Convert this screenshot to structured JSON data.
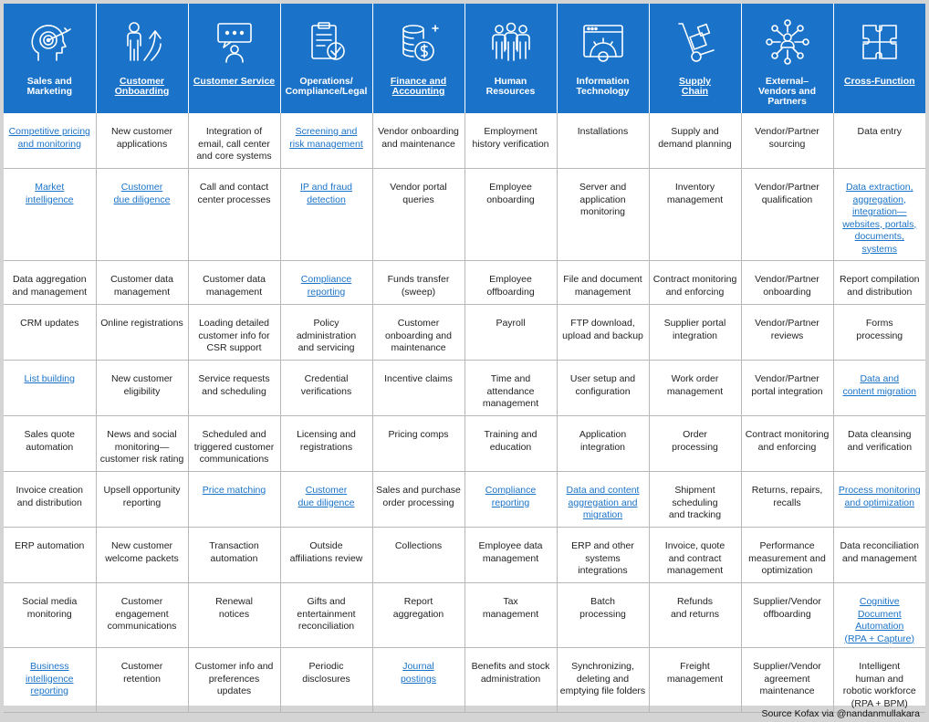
{
  "headers": [
    {
      "label": "Sales and\nMarketing",
      "link": false,
      "icon": "target-head-icon"
    },
    {
      "label": "Customer\nOnboarding",
      "link": true,
      "icon": "person-growth-icon"
    },
    {
      "label": "Customer Service",
      "link": true,
      "icon": "support-chat-icon"
    },
    {
      "label": "Operations/\nCompliance/Legal",
      "link": false,
      "icon": "compliance-clipboard-icon"
    },
    {
      "label": "Finance and\nAccounting",
      "link": true,
      "icon": "coins-dollar-icon"
    },
    {
      "label": "Human\nResources",
      "link": false,
      "icon": "people-group-icon"
    },
    {
      "label": "Information\nTechnology",
      "link": false,
      "icon": "browser-gear-icon"
    },
    {
      "label": "Supply\nChain",
      "link": true,
      "icon": "hand-truck-icon"
    },
    {
      "label": "External–\nVendors and\nPartners",
      "link": false,
      "icon": "network-people-icon"
    },
    {
      "label": "Cross-Function",
      "link": true,
      "icon": "puzzle-icon"
    }
  ],
  "rows": [
    [
      {
        "t": "Competitive pricing\nand monitoring",
        "l": true
      },
      {
        "t": "New customer\napplications",
        "l": false
      },
      {
        "t": "Integration of\nemail, call center\nand core systems",
        "l": false
      },
      {
        "t": "Screening and\nrisk management",
        "l": true
      },
      {
        "t": "Vendor onboarding\nand maintenance",
        "l": false
      },
      {
        "t": "Employment\nhistory verification",
        "l": false
      },
      {
        "t": "Installations",
        "l": false
      },
      {
        "t": "Supply and\ndemand planning",
        "l": false
      },
      {
        "t": "Vendor/Partner\nsourcing",
        "l": false
      },
      {
        "t": "Data entry",
        "l": false
      }
    ],
    [
      {
        "t": "Market\nintelligence",
        "l": true
      },
      {
        "t": "Customer\ndue diligence",
        "l": true
      },
      {
        "t": "Call and contact\ncenter processes",
        "l": false
      },
      {
        "t": "IP and fraud\ndetection",
        "l": true
      },
      {
        "t": "Vendor portal\nqueries",
        "l": false
      },
      {
        "t": "Employee\nonboarding",
        "l": false
      },
      {
        "t": "Server and\napplication\nmonitoring",
        "l": false
      },
      {
        "t": "Inventory\nmanagement",
        "l": false
      },
      {
        "t": "Vendor/Partner\nqualification",
        "l": false
      },
      {
        "t": "Data extraction,\naggregation,\nintegration—\nwebsites, portals,\ndocuments,\nsystems",
        "l": true
      }
    ],
    [
      {
        "t": "Data aggregation\nand management",
        "l": false
      },
      {
        "t": "Customer data\nmanagement",
        "l": false
      },
      {
        "t": "Customer data\nmanagement",
        "l": false
      },
      {
        "t": "Compliance\nreporting",
        "l": true
      },
      {
        "t": "Funds transfer\n(sweep)",
        "l": false
      },
      {
        "t": "Employee\noffboarding",
        "l": false
      },
      {
        "t": "File and document\nmanagement",
        "l": false
      },
      {
        "t": "Contract monitoring\nand enforcing",
        "l": false
      },
      {
        "t": "Vendor/Partner\nonboarding",
        "l": false
      },
      {
        "t": "Report compilation\nand distribution",
        "l": false
      }
    ],
    [
      {
        "t": "CRM updates",
        "l": false
      },
      {
        "t": "Online registrations",
        "l": false
      },
      {
        "t": "Loading detailed\ncustomer info for\nCSR support",
        "l": false
      },
      {
        "t": "Policy administration\nand servicing",
        "l": false
      },
      {
        "t": "Customer\nonboarding and\nmaintenance",
        "l": false
      },
      {
        "t": "Payroll",
        "l": false
      },
      {
        "t": "FTP download,\nupload and backup",
        "l": false
      },
      {
        "t": "Supplier portal\nintegration",
        "l": false
      },
      {
        "t": "Vendor/Partner\nreviews",
        "l": false
      },
      {
        "t": "Forms\nprocessing",
        "l": false
      }
    ],
    [
      {
        "t": "List building",
        "l": true
      },
      {
        "t": "New customer\neligibility",
        "l": false
      },
      {
        "t": "Service requests\nand scheduling",
        "l": false
      },
      {
        "t": "Credential\nverifications",
        "l": false
      },
      {
        "t": "Incentive claims",
        "l": false
      },
      {
        "t": "Time and\nattendance\nmanagement",
        "l": false
      },
      {
        "t": "User setup and\nconfiguration",
        "l": false
      },
      {
        "t": "Work order\nmanagement",
        "l": false
      },
      {
        "t": "Vendor/Partner\nportal integration",
        "l": false
      },
      {
        "t": "Data and\ncontent migration",
        "l": true
      }
    ],
    [
      {
        "t": "Sales quote\nautomation",
        "l": false
      },
      {
        "t": "News and social\nmonitoring—\ncustomer risk rating",
        "l": false
      },
      {
        "t": "Scheduled and\ntriggered customer\ncommunications",
        "l": false
      },
      {
        "t": "Licensing and\nregistrations",
        "l": false
      },
      {
        "t": "Pricing comps",
        "l": false
      },
      {
        "t": "Training and\neducation",
        "l": false
      },
      {
        "t": "Application\nintegration",
        "l": false
      },
      {
        "t": "Order\nprocessing",
        "l": false
      },
      {
        "t": "Contract monitoring\nand enforcing",
        "l": false
      },
      {
        "t": "Data cleansing\nand verification",
        "l": false
      }
    ],
    [
      {
        "t": "Invoice creation\nand distribution",
        "l": false
      },
      {
        "t": "Upsell opportunity\nreporting",
        "l": false
      },
      {
        "t": "Price matching",
        "l": true
      },
      {
        "t": "Customer\ndue diligence",
        "l": true
      },
      {
        "t": "Sales and purchase\norder processing",
        "l": false
      },
      {
        "t": "Compliance\nreporting",
        "l": true
      },
      {
        "t": "Data and content\naggregation and\nmigration",
        "l": true
      },
      {
        "t": "Shipment scheduling\nand tracking",
        "l": false
      },
      {
        "t": "Returns, repairs,\nrecalls",
        "l": false
      },
      {
        "t": "Process monitoring\nand optimization",
        "l": true
      }
    ],
    [
      {
        "t": "ERP automation",
        "l": false
      },
      {
        "t": "New customer\nwelcome packets",
        "l": false
      },
      {
        "t": "Transaction\nautomation",
        "l": false
      },
      {
        "t": "Outside\naffiliations review",
        "l": false
      },
      {
        "t": "Collections",
        "l": false
      },
      {
        "t": "Employee data\nmanagement",
        "l": false
      },
      {
        "t": "ERP and other\nsystems integrations",
        "l": false
      },
      {
        "t": "Invoice, quote\nand contract\nmanagement",
        "l": false
      },
      {
        "t": "Performance\nmeasurement and\noptimization",
        "l": false
      },
      {
        "t": "Data reconciliation\nand management",
        "l": false
      }
    ],
    [
      {
        "t": "Social media\nmonitoring",
        "l": false
      },
      {
        "t": "Customer\nengagement\ncommunications",
        "l": false
      },
      {
        "t": "Renewal\nnotices",
        "l": false
      },
      {
        "t": "Gifts and\nentertainment\nreconciliation",
        "l": false
      },
      {
        "t": "Report\naggregation",
        "l": false
      },
      {
        "t": "Tax\nmanagement",
        "l": false
      },
      {
        "t": "Batch\nprocessing",
        "l": false
      },
      {
        "t": "Refunds\nand returns",
        "l": false
      },
      {
        "t": "Supplier/Vendor\noffboarding",
        "l": false
      },
      {
        "t": "Cognitive Document\nAutomation\n(RPA + Capture)",
        "l": true
      }
    ],
    [
      {
        "t": "Business\nintelligence reporting",
        "l": true
      },
      {
        "t": "Customer\nretention",
        "l": false
      },
      {
        "t": "Customer info and\npreferences updates",
        "l": false
      },
      {
        "t": "Periodic\ndisclosures",
        "l": false
      },
      {
        "t": "Journal\npostings",
        "l": true
      },
      {
        "t": "Benefits and stock\nadministration",
        "l": false
      },
      {
        "t": "Synchronizing,\ndeleting and\nemptying file folders",
        "l": false
      },
      {
        "t": "Freight\nmanagement",
        "l": false
      },
      {
        "t": "Supplier/Vendor\nagreement\nmaintenance",
        "l": false
      },
      {
        "t": "Intelligent\nhuman and\nrobotic workforce\n(RPA + BPM)",
        "l": false
      }
    ]
  ],
  "source": "Source Kofax via @nandanmullakara",
  "colors": {
    "header_bg": "#1a73c8",
    "link": "#1a73c8",
    "frame_bg": "#d4d4d4"
  }
}
